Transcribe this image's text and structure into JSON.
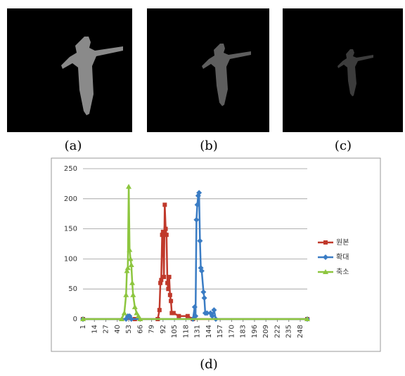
{
  "panel_labels": [
    "(a)",
    "(b)",
    "(c)",
    "(d)"
  ],
  "chart_data": {
    "type": "line",
    "xlim": [
      1,
      256
    ],
    "xticks": [
      1,
      14,
      27,
      40,
      53,
      66,
      79,
      92,
      105,
      118,
      131,
      144,
      157,
      170,
      183,
      196,
      209,
      222,
      235,
      248
    ],
    "ylim": [
      0,
      250
    ],
    "yticks": [
      0,
      50,
      100,
      150,
      200,
      250
    ],
    "grid": true,
    "legend": "right",
    "series": [
      {
        "name": "원본",
        "color": "#c0392b",
        "marker": "square",
        "x": [
          1,
          60,
          86,
          88,
          89,
          90,
          91,
          92,
          93,
          94,
          95,
          96,
          97,
          98,
          99,
          100,
          101,
          102,
          104,
          110,
          120,
          126,
          256
        ],
        "values": [
          0,
          0,
          0,
          15,
          60,
          65,
          140,
          145,
          70,
          190,
          150,
          140,
          60,
          50,
          70,
          40,
          30,
          10,
          10,
          5,
          5,
          0,
          0
        ]
      },
      {
        "name": "확대",
        "color": "#3a7cc4",
        "marker": "diamond",
        "x": [
          1,
          50,
          52,
          54,
          56,
          126,
          128,
          129,
          130,
          131,
          132,
          133,
          134,
          135,
          136,
          138,
          139,
          140,
          142,
          146,
          148,
          150,
          152,
          256
        ],
        "values": [
          0,
          0,
          5,
          5,
          0,
          0,
          20,
          5,
          165,
          190,
          205,
          210,
          130,
          85,
          80,
          45,
          35,
          10,
          10,
          10,
          5,
          15,
          0,
          0
        ]
      },
      {
        "name": "축소",
        "color": "#8dc63f",
        "marker": "triangle",
        "x": [
          1,
          45,
          48,
          50,
          51,
          52,
          53,
          54,
          55,
          56,
          57,
          58,
          60,
          62,
          64,
          66,
          256
        ],
        "values": [
          0,
          0,
          10,
          40,
          80,
          85,
          220,
          115,
          100,
          90,
          60,
          40,
          20,
          10,
          5,
          0,
          0
        ]
      }
    ]
  }
}
